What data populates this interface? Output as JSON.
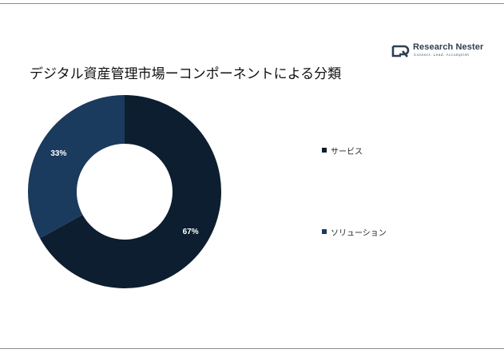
{
  "header": {
    "title": "デジタル資産管理市場ーコンポーネントによる分類"
  },
  "logo": {
    "name": "Research Nester",
    "tagline": "Connect. Lead. Accomplish",
    "icon": "research-nester-logo-icon"
  },
  "colors": {
    "services": "#0c1e2f",
    "solutions": "#1a3a5e",
    "logo": "#2f3f52",
    "background": "#ffffff"
  },
  "chart_data": {
    "type": "pie",
    "donut": true,
    "title": "デジタル資産管理市場ーコンポーネントによる分類",
    "categories": [
      "サービス",
      "ソリューション"
    ],
    "values": [
      67,
      33
    ],
    "data_labels": [
      "67%",
      "33%"
    ],
    "legend_position": "right",
    "start_angle_deg": 0,
    "direction": "clockwise"
  }
}
